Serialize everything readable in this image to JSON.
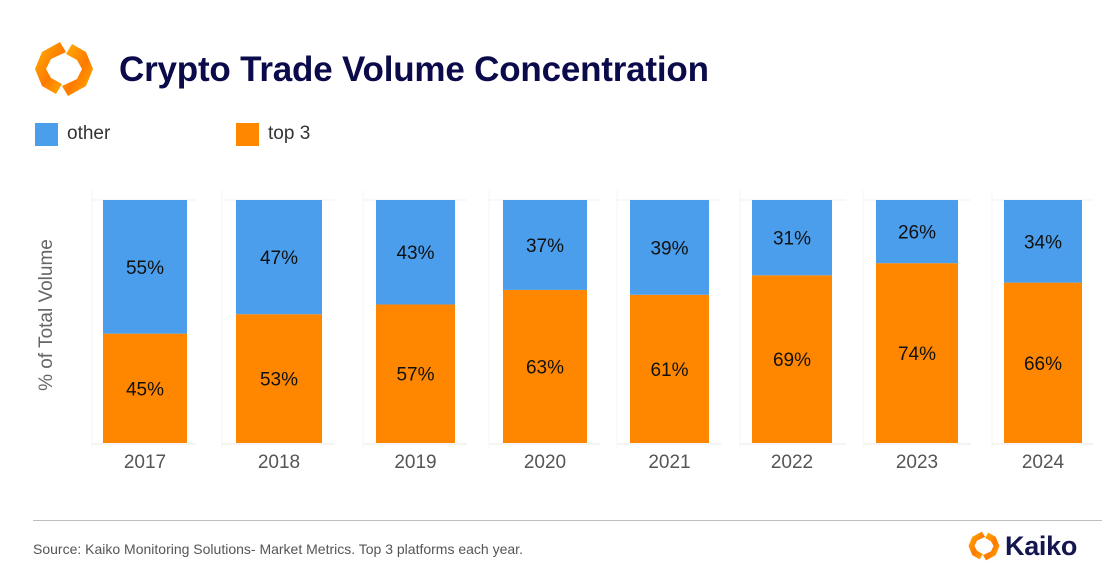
{
  "header": {
    "title": "Crypto Trade Volume Concentration",
    "logo_icon": "kaiko-hexagon-logo-icon"
  },
  "colors": {
    "other": "#4a9eec",
    "top3": "#ff8700",
    "title": "#0b0a4a",
    "grid": "#f0f0f0"
  },
  "chart_data": {
    "type": "bar",
    "stacked": true,
    "title": "Crypto Trade Volume Concentration",
    "xlabel": "",
    "ylabel": "% of Total Volume",
    "ylim": [
      0,
      100
    ],
    "grid": true,
    "legend_position": "top-left",
    "categories": [
      "2017",
      "2018",
      "2019",
      "2020",
      "2021",
      "2022",
      "2023",
      "2024"
    ],
    "series": [
      {
        "name": "top 3",
        "color": "#ff8700",
        "values": [
          45,
          53,
          57,
          63,
          61,
          69,
          74,
          66
        ],
        "labels": [
          "45%",
          "53%",
          "57%",
          "63%",
          "61%",
          "69%",
          "74%",
          "66%"
        ]
      },
      {
        "name": "other",
        "color": "#4a9eec",
        "values": [
          55,
          47,
          43,
          37,
          39,
          31,
          26,
          34
        ],
        "labels": [
          "55%",
          "47%",
          "43%",
          "37%",
          "39%",
          "31%",
          "26%",
          "34%"
        ]
      }
    ]
  },
  "legend": {
    "items": [
      {
        "label": "other",
        "color": "#4a9eec"
      },
      {
        "label": "top 3",
        "color": "#ff8700"
      }
    ]
  },
  "footer": {
    "source": "Source: Kaiko Monitoring Solutions- Market Metrics. Top 3 platforms each year.",
    "brand_name": "Kaiko"
  }
}
